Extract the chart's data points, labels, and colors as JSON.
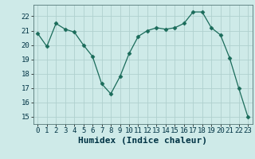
{
  "x": [
    0,
    1,
    2,
    3,
    4,
    5,
    6,
    7,
    8,
    9,
    10,
    11,
    12,
    13,
    14,
    15,
    16,
    17,
    18,
    19,
    20,
    21,
    22,
    23
  ],
  "y": [
    20.8,
    19.9,
    21.5,
    21.1,
    20.9,
    20.0,
    19.2,
    17.3,
    16.6,
    17.8,
    19.4,
    20.6,
    21.0,
    21.2,
    21.1,
    21.2,
    21.5,
    22.3,
    22.3,
    21.2,
    20.7,
    19.1,
    17.0,
    15.0
  ],
  "line_color": "#1a6b5a",
  "marker": "D",
  "marker_size": 2.5,
  "bg_color": "#ceeae8",
  "grid_color": "#b0d0ce",
  "xlabel": "Humidex (Indice chaleur)",
  "xlabel_fontsize": 8,
  "tick_fontsize": 6.5,
  "ylim": [
    14.5,
    22.8
  ],
  "xlim": [
    -0.5,
    23.5
  ],
  "yticks": [
    15,
    16,
    17,
    18,
    19,
    20,
    21,
    22
  ],
  "xticks": [
    0,
    1,
    2,
    3,
    4,
    5,
    6,
    7,
    8,
    9,
    10,
    11,
    12,
    13,
    14,
    15,
    16,
    17,
    18,
    19,
    20,
    21,
    22,
    23
  ]
}
